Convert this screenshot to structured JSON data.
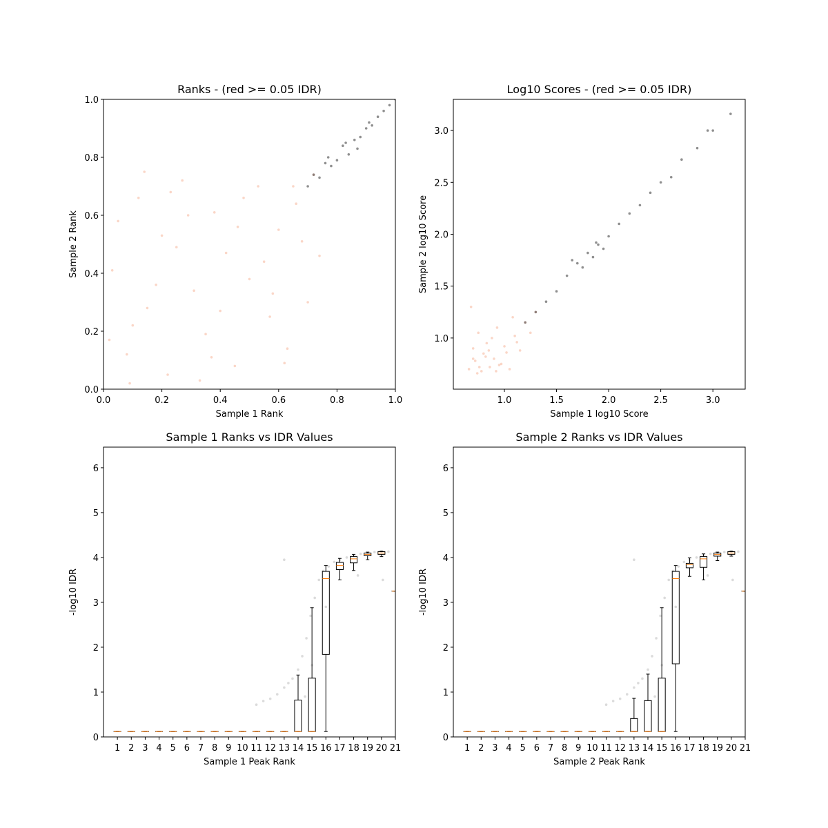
{
  "chart_data": [
    {
      "type": "scatter",
      "title": "Ranks - (red >= 0.05 IDR)",
      "x_label": "Sample 1 Rank",
      "y_label": "Sample 2 Rank",
      "xlim": [
        0,
        1
      ],
      "ylim": [
        0,
        1
      ],
      "xticks": [
        {
          "value": 0,
          "label": "0.0"
        },
        0.2,
        0.4,
        0.6,
        0.8,
        {
          "value": 1,
          "label": "1.0"
        }
      ],
      "yticks": [
        {
          "value": 0,
          "label": "0.0"
        },
        0.2,
        0.4,
        0.6,
        0.8,
        {
          "value": 1,
          "label": "1.0"
        }
      ],
      "series": [
        {
          "color": "#f4a582",
          "x": [
            0.03,
            0.08,
            0.12,
            0.15,
            0.2,
            0.22,
            0.27,
            0.31,
            0.35,
            0.38,
            0.42,
            0.45,
            0.5,
            0.53,
            0.57,
            0.6,
            0.63,
            0.66,
            0.7,
            0.72,
            0.05,
            0.1,
            0.18,
            0.25,
            0.33,
            0.4,
            0.48,
            0.55,
            0.62,
            0.68,
            0.02,
            0.14,
            0.29,
            0.37,
            0.46,
            0.58,
            0.65,
            0.74,
            0.09,
            0.23
          ],
          "y": [
            0.41,
            0.12,
            0.66,
            0.28,
            0.53,
            0.05,
            0.72,
            0.34,
            0.19,
            0.61,
            0.47,
            0.08,
            0.38,
            0.7,
            0.25,
            0.55,
            0.14,
            0.64,
            0.3,
            0.74,
            0.58,
            0.22,
            0.36,
            0.49,
            0.03,
            0.27,
            0.66,
            0.44,
            0.09,
            0.51,
            0.17,
            0.75,
            0.6,
            0.11,
            0.56,
            0.33,
            0.7,
            0.46,
            0.02,
            0.68
          ]
        },
        {
          "color": "#333333",
          "x": [
            0.7,
            0.72,
            0.74,
            0.76,
            0.78,
            0.8,
            0.82,
            0.84,
            0.86,
            0.88,
            0.9,
            0.92,
            0.94,
            0.96,
            0.98,
            1.0,
            0.77,
            0.83,
            0.87,
            0.91
          ],
          "y": [
            0.7,
            0.74,
            0.73,
            0.78,
            0.77,
            0.79,
            0.84,
            0.81,
            0.86,
            0.87,
            0.9,
            0.91,
            0.94,
            0.96,
            0.98,
            1.0,
            0.8,
            0.85,
            0.83,
            0.92
          ]
        }
      ]
    },
    {
      "type": "scatter",
      "title": "Log10 Scores - (red >= 0.05 IDR)",
      "x_label": "Sample 1 log10 Score",
      "y_label": "Sample 2 log10 Score",
      "xlim": [
        0.51,
        3.31
      ],
      "ylim": [
        0.507,
        3.3
      ],
      "xticks": [
        {
          "value": 1,
          "label": "1.0"
        },
        1.5,
        {
          "value": 2,
          "label": "2.0"
        },
        2.5,
        {
          "value": 3,
          "label": "3.0"
        }
      ],
      "yticks": [
        {
          "value": 1,
          "label": "1.0"
        },
        1.5,
        {
          "value": 2,
          "label": "2.0"
        },
        2.5,
        {
          "value": 3,
          "label": "3.0"
        }
      ],
      "series": [
        {
          "color": "#f4a582",
          "x": [
            0.66,
            0.7,
            0.72,
            0.75,
            0.78,
            0.8,
            0.83,
            0.86,
            0.9,
            0.93,
            0.97,
            1.0,
            1.05,
            1.1,
            1.15,
            1.2,
            1.25,
            1.3,
            0.68,
            0.74,
            0.82,
            0.88,
            0.95,
            1.02,
            1.12,
            0.7,
            0.76,
            0.85,
            0.92,
            1.08
          ],
          "y": [
            0.7,
            0.9,
            0.78,
            1.05,
            0.68,
            0.85,
            0.95,
            0.72,
            0.8,
            1.1,
            0.75,
            0.92,
            0.7,
            1.02,
            0.88,
            1.15,
            1.05,
            1.25,
            1.3,
            0.66,
            0.82,
            1.0,
            0.74,
            0.86,
            0.96,
            0.8,
            0.72,
            0.88,
            0.68,
            1.2
          ]
        },
        {
          "color": "#333333",
          "x": [
            1.2,
            1.3,
            1.4,
            1.5,
            1.6,
            1.7,
            1.75,
            1.8,
            1.85,
            1.9,
            1.95,
            2.0,
            2.1,
            2.2,
            2.3,
            2.4,
            2.5,
            2.6,
            2.7,
            2.85,
            2.95,
            3.0,
            3.17,
            1.65,
            1.88
          ],
          "y": [
            1.15,
            1.25,
            1.35,
            1.45,
            1.6,
            1.72,
            1.68,
            1.82,
            1.78,
            1.9,
            1.86,
            1.98,
            2.1,
            2.2,
            2.28,
            2.4,
            2.5,
            2.55,
            2.72,
            2.83,
            3.0,
            3.0,
            3.16,
            1.75,
            1.92
          ]
        }
      ]
    },
    {
      "type": "box",
      "title": "Sample 1 Ranks vs IDR Values",
      "x_label": "Sample 1 Peak Rank",
      "y_label": "-log10 IDR",
      "xlim": [
        0,
        21
      ],
      "ylim": [
        0,
        6.46
      ],
      "xticks": [
        1,
        2,
        3,
        4,
        5,
        6,
        7,
        8,
        9,
        10,
        11,
        12,
        13,
        14,
        15,
        16,
        17,
        18,
        19,
        20,
        21
      ],
      "yticks": [
        0,
        1,
        2,
        3,
        4,
        5,
        6
      ],
      "median_color": "#ff7f0e",
      "boxes": {
        "x": [
          1,
          2,
          3,
          4,
          5,
          6,
          7,
          8,
          9,
          10,
          11,
          12,
          13,
          14,
          15,
          16,
          17,
          18,
          19,
          20,
          21
        ],
        "whislo": [
          0.12,
          0.12,
          0.12,
          0.12,
          0.12,
          0.12,
          0.12,
          0.12,
          0.12,
          0.12,
          0.12,
          0.12,
          0.12,
          0.12,
          0.12,
          0.12,
          3.5,
          3.71,
          3.95,
          4.02,
          3.25
        ],
        "q1": [
          0.12,
          0.12,
          0.12,
          0.12,
          0.12,
          0.12,
          0.12,
          0.12,
          0.12,
          0.12,
          0.12,
          0.12,
          0.12,
          0.12,
          0.12,
          1.84,
          3.73,
          3.88,
          4.04,
          4.07,
          3.25
        ],
        "med": [
          0.12,
          0.12,
          0.12,
          0.12,
          0.12,
          0.12,
          0.12,
          0.12,
          0.12,
          0.12,
          0.12,
          0.12,
          0.12,
          0.12,
          0.12,
          3.53,
          3.82,
          3.97,
          4.07,
          4.1,
          3.25
        ],
        "q3": [
          0.12,
          0.12,
          0.12,
          0.12,
          0.12,
          0.12,
          0.12,
          0.12,
          0.12,
          0.12,
          0.12,
          0.12,
          0.12,
          0.82,
          1.31,
          3.69,
          3.89,
          4.02,
          4.1,
          4.13,
          3.25
        ],
        "whishi": [
          0.12,
          0.12,
          0.12,
          0.12,
          0.12,
          0.12,
          0.12,
          0.12,
          0.12,
          0.12,
          0.12,
          0.12,
          0.12,
          1.38,
          2.88,
          3.82,
          3.98,
          4.07,
          4.12,
          4.14,
          3.25
        ]
      },
      "points": {
        "color": "#999999",
        "x": [
          11,
          11.5,
          12,
          12.5,
          13,
          13.3,
          13.6,
          14,
          14.3,
          14.6,
          14.9,
          15.2,
          15.5,
          15.8,
          16.2,
          16.6,
          17,
          17.5,
          18,
          18.5,
          19,
          19.5,
          20,
          20.5,
          13,
          16,
          18.3,
          20.1,
          15,
          14.5
        ],
        "y": [
          0.72,
          0.8,
          0.85,
          0.95,
          1.1,
          1.2,
          1.3,
          1.5,
          1.8,
          2.2,
          2.7,
          3.1,
          3.5,
          3.7,
          3.8,
          3.9,
          3.95,
          4.0,
          4.05,
          4.08,
          4.1,
          4.12,
          4.13,
          4.13,
          3.95,
          2.9,
          3.6,
          3.5,
          1.6,
          0.9
        ]
      }
    },
    {
      "type": "box",
      "title": "Sample 2 Ranks vs IDR Values",
      "x_label": "Sample 2 Peak Rank",
      "y_label": "-log10 IDR",
      "xlim": [
        0,
        21
      ],
      "ylim": [
        0,
        6.46
      ],
      "xticks": [
        1,
        2,
        3,
        4,
        5,
        6,
        7,
        8,
        9,
        10,
        11,
        12,
        13,
        14,
        15,
        16,
        17,
        18,
        19,
        20,
        21
      ],
      "yticks": [
        0,
        1,
        2,
        3,
        4,
        5,
        6
      ],
      "median_color": "#ff7f0e",
      "boxes": {
        "x": [
          1,
          2,
          3,
          4,
          5,
          6,
          7,
          8,
          9,
          10,
          11,
          12,
          13,
          14,
          15,
          16,
          17,
          18,
          19,
          20,
          21
        ],
        "whislo": [
          0.12,
          0.12,
          0.12,
          0.12,
          0.12,
          0.12,
          0.12,
          0.12,
          0.12,
          0.12,
          0.12,
          0.12,
          0.12,
          0.12,
          0.12,
          0.12,
          3.58,
          3.5,
          3.93,
          4.03,
          3.25
        ],
        "q1": [
          0.12,
          0.12,
          0.12,
          0.12,
          0.12,
          0.12,
          0.12,
          0.12,
          0.12,
          0.12,
          0.12,
          0.12,
          0.12,
          0.12,
          0.12,
          1.63,
          3.77,
          3.78,
          4.03,
          4.07,
          3.25
        ],
        "med": [
          0.12,
          0.12,
          0.12,
          0.12,
          0.12,
          0.12,
          0.12,
          0.12,
          0.12,
          0.12,
          0.12,
          0.12,
          0.12,
          0.12,
          0.12,
          3.53,
          3.84,
          3.97,
          4.07,
          4.1,
          3.25
        ],
        "q3": [
          0.12,
          0.12,
          0.12,
          0.12,
          0.12,
          0.12,
          0.12,
          0.12,
          0.12,
          0.12,
          0.12,
          0.12,
          0.41,
          0.81,
          1.31,
          3.69,
          3.87,
          4.02,
          4.1,
          4.13,
          3.25
        ],
        "whishi": [
          0.12,
          0.12,
          0.12,
          0.12,
          0.12,
          0.12,
          0.12,
          0.12,
          0.12,
          0.12,
          0.12,
          0.12,
          0.86,
          1.4,
          2.88,
          3.82,
          3.99,
          4.08,
          4.12,
          4.14,
          3.25
        ]
      },
      "points": {
        "color": "#999999",
        "x": [
          11,
          11.5,
          12,
          12.5,
          13,
          13.3,
          13.6,
          14,
          14.3,
          14.6,
          14.9,
          15.2,
          15.5,
          15.8,
          16.2,
          16.6,
          17,
          17.5,
          18,
          18.5,
          19,
          19.5,
          20,
          20.5,
          13,
          16,
          18.3,
          20.1,
          15,
          14.5
        ],
        "y": [
          0.72,
          0.8,
          0.85,
          0.95,
          1.1,
          1.2,
          1.3,
          1.5,
          1.8,
          2.2,
          2.7,
          3.1,
          3.5,
          3.7,
          3.8,
          3.9,
          3.95,
          4.0,
          4.05,
          4.08,
          4.1,
          4.12,
          4.13,
          4.13,
          3.95,
          2.9,
          3.6,
          3.5,
          1.6,
          0.9
        ]
      }
    }
  ]
}
